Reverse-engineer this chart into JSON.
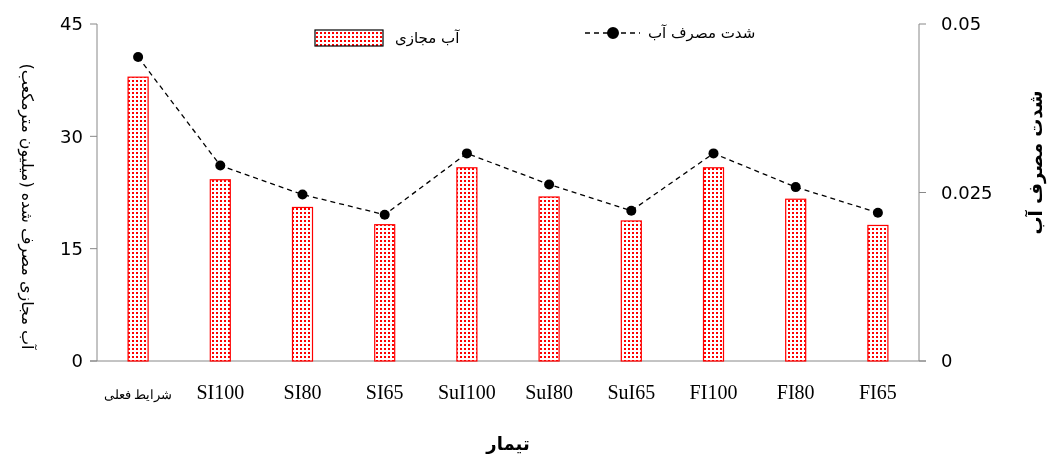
{
  "chart_data": {
    "type": "bar",
    "xlabel": "تیمار",
    "ylabel": "آب مجازی مصرف شده (میلیون مترمکعب)",
    "y2label": "شدت مصرف آب",
    "categories": [
      "شرایط فعلی",
      "SI100",
      "SI80",
      "SI65",
      "SuI100",
      "SuI80",
      "SuI65",
      "FI100",
      "FI80",
      "FI65"
    ],
    "series": [
      {
        "name": "آب مجازی",
        "color": "#ff0000",
        "values": [
          37.9,
          24.2,
          20.5,
          18.2,
          25.8,
          21.9,
          18.7,
          25.8,
          21.6,
          18.1
        ]
      },
      {
        "name": "شدت مصرف آب",
        "type": "line",
        "axis": "y2",
        "color": "#000000",
        "marker": "circle",
        "line_style": "dashed",
        "values": [
          0.0451,
          0.029,
          0.0247,
          0.0217,
          0.0308,
          0.0262,
          0.0223,
          0.0308,
          0.0258,
          0.022
        ]
      }
    ],
    "ylim": [
      0,
      45
    ],
    "yticks": [
      0,
      15,
      30,
      45
    ],
    "y2lim": [
      0,
      0.05
    ],
    "y2ticks": [
      0,
      0.025,
      0.05
    ],
    "grid": false,
    "legend": "top"
  }
}
